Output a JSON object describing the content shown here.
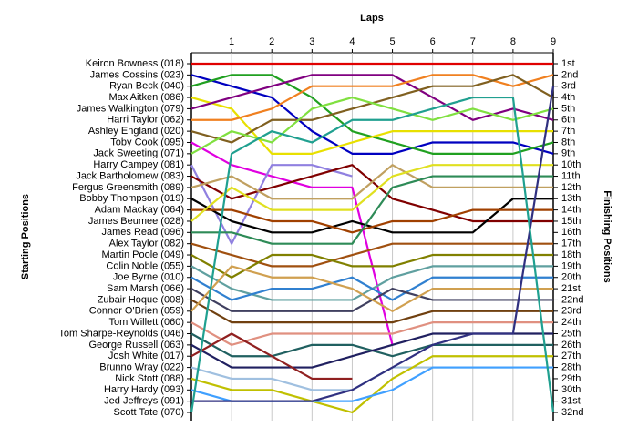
{
  "chart_data": {
    "type": "line",
    "title": "Laps",
    "y_label": "Starting Positions",
    "y2_label": "Finishing Positions",
    "x": [
      0,
      1,
      2,
      3,
      4,
      5,
      6,
      7,
      8,
      9
    ],
    "xlim": [
      0,
      9
    ],
    "xticks": [
      1,
      2,
      3,
      4,
      5,
      6,
      7,
      8,
      9
    ],
    "ylim": [
      1,
      32
    ],
    "finishing_positions": [
      "1st",
      "2nd",
      "3rd",
      "4th",
      "5th",
      "6th",
      "7th",
      "8th",
      "9th",
      "10th",
      "11th",
      "12th",
      "13th",
      "14th",
      "15th",
      "16th",
      "17th",
      "18th",
      "19th",
      "20th",
      "21st",
      "22nd",
      "23rd",
      "24th",
      "25th",
      "26th",
      "27th",
      "28th",
      "29th",
      "30th",
      "31st",
      "32nd"
    ],
    "grid": true,
    "series": [
      {
        "name": "Keiron Bowness (018)",
        "color": "#e00000",
        "values": [
          1,
          1,
          1,
          1,
          1,
          1,
          1,
          1,
          1,
          1
        ]
      },
      {
        "name": "James Cossins (023)",
        "color": "#0000c0",
        "values": [
          2,
          3,
          4,
          7,
          9,
          9,
          8,
          8,
          8,
          9
        ]
      },
      {
        "name": "Ryan Beck (040)",
        "color": "#20a020",
        "values": [
          3,
          2,
          2,
          4,
          7,
          8,
          9,
          9,
          9,
          8
        ]
      },
      {
        "name": "Max Aitken (086)",
        "color": "#e8e000",
        "values": [
          4,
          5,
          9,
          9,
          8,
          7,
          7,
          7,
          7,
          7
        ]
      },
      {
        "name": "James Walkington (079)",
        "color": "#800080",
        "values": [
          5,
          4,
          3,
          2,
          2,
          2,
          4,
          6,
          5,
          6
        ]
      },
      {
        "name": "Harri Taylor (062)",
        "color": "#f08020",
        "values": [
          6,
          6,
          5,
          3,
          3,
          3,
          2,
          2,
          3,
          2
        ]
      },
      {
        "name": "Ashley England (020)",
        "color": "#806020",
        "values": [
          7,
          8,
          6,
          6,
          5,
          4,
          3,
          3,
          2,
          4
        ]
      },
      {
        "name": "Toby Cook (095)",
        "color": "#e000e0",
        "values": [
          8,
          10,
          11,
          12,
          12,
          26,
          null,
          null,
          null,
          null
        ]
      },
      {
        "name": "Jack Sweeting (071)",
        "color": "#80e040",
        "values": [
          9,
          7,
          8,
          5,
          4,
          5,
          6,
          5,
          6,
          5
        ]
      },
      {
        "name": "Harry Campey (081)",
        "color": "#9080e0",
        "values": [
          10,
          17,
          10,
          10,
          11,
          null,
          null,
          null,
          null,
          null
        ]
      },
      {
        "name": "Jack Bartholomew (083)",
        "color": "#800000",
        "values": [
          11,
          13,
          12,
          11,
          10,
          13,
          14,
          15,
          15,
          15
        ]
      },
      {
        "name": "Fergus Greensmith (089)",
        "color": "#c0a060",
        "values": [
          12,
          11,
          13,
          13,
          13,
          10,
          12,
          12,
          12,
          12
        ]
      },
      {
        "name": "Bobby Thompson (019)",
        "color": "#000000",
        "values": [
          13,
          15,
          16,
          16,
          15,
          16,
          16,
          16,
          13,
          13
        ]
      },
      {
        "name": "Adam Mackay (064)",
        "color": "#a04000",
        "values": [
          14,
          14,
          15,
          15,
          16,
          15,
          15,
          14,
          14,
          14
        ]
      },
      {
        "name": "James Beumee (028)",
        "color": "#e0e020",
        "values": [
          15,
          12,
          14,
          14,
          14,
          11,
          10,
          10,
          10,
          10
        ]
      },
      {
        "name": "James Read (096)",
        "color": "#2e8b57",
        "values": [
          16,
          16,
          17,
          17,
          17,
          12,
          11,
          11,
          11,
          11
        ]
      },
      {
        "name": "Alex Taylor (082)",
        "color": "#a05010",
        "values": [
          17,
          18,
          19,
          19,
          18,
          17,
          17,
          17,
          17,
          17
        ]
      },
      {
        "name": "Martin Poole (049)",
        "color": "#808000",
        "values": [
          18,
          20,
          18,
          18,
          19,
          19,
          18,
          18,
          18,
          18
        ]
      },
      {
        "name": "Colin Noble (055)",
        "color": "#60a0a0",
        "values": [
          19,
          21,
          22,
          22,
          22,
          20,
          19,
          19,
          19,
          19
        ]
      },
      {
        "name": "Joe Byrne (010)",
        "color": "#3080d0",
        "values": [
          20,
          22,
          21,
          21,
          20,
          22,
          20,
          20,
          20,
          20
        ]
      },
      {
        "name": "Sam Marsh (066)",
        "color": "#404060",
        "values": [
          21,
          23,
          23,
          23,
          23,
          21,
          22,
          22,
          22,
          22
        ]
      },
      {
        "name": "Zubair Hoque (008)",
        "color": "#704010",
        "values": [
          22,
          24,
          24,
          24,
          24,
          24,
          23,
          23,
          23,
          23
        ]
      },
      {
        "name": "Connor O'Brien (059)",
        "color": "#d0a050",
        "values": [
          23,
          19,
          20,
          20,
          21,
          23,
          21,
          21,
          21,
          21
        ]
      },
      {
        "name": "Tom Willett (060)",
        "color": "#e09080",
        "values": [
          24,
          26,
          25,
          25,
          25,
          25,
          24,
          24,
          24,
          24
        ]
      },
      {
        "name": "Tom Sharpe-Reynolds (046)",
        "color": "#206060",
        "values": [
          25,
          27,
          27,
          26,
          26,
          27,
          26,
          26,
          26,
          26
        ]
      },
      {
        "name": "George Russell (063)",
        "color": "#202060",
        "values": [
          26,
          28,
          28,
          28,
          27,
          26,
          25,
          25,
          25,
          25
        ]
      },
      {
        "name": "Josh White (017)",
        "color": "#902020",
        "values": [
          27,
          25,
          27,
          29,
          29,
          null,
          null,
          null,
          null,
          null
        ]
      },
      {
        "name": "Brunno Wray (022)",
        "color": "#a0c0e0",
        "values": [
          28,
          29,
          29,
          30,
          30,
          28,
          28,
          28,
          28,
          null
        ]
      },
      {
        "name": "Nick Stott (088)",
        "color": "#c0c000",
        "values": [
          29,
          30,
          30,
          31,
          32,
          29,
          27,
          27,
          27,
          27
        ]
      },
      {
        "name": "Harry Hardy (093)",
        "color": "#40a0ff",
        "values": [
          30,
          31,
          31,
          31,
          31,
          30,
          28,
          28,
          28,
          28
        ]
      },
      {
        "name": "Jed Jeffreys (091)",
        "color": "#303080",
        "values": [
          31,
          31,
          31,
          31,
          30,
          28,
          26,
          25,
          25,
          3
        ]
      },
      {
        "name": "Scott Tate (070)",
        "color": "#20a090",
        "values": [
          32,
          9,
          7,
          8,
          6,
          6,
          5,
          4,
          4,
          32
        ]
      }
    ]
  }
}
